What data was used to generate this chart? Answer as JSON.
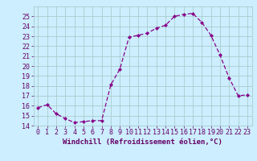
{
  "x": [
    0,
    1,
    2,
    3,
    4,
    5,
    6,
    7,
    8,
    9,
    10,
    11,
    12,
    13,
    14,
    15,
    16,
    17,
    18,
    19,
    20,
    21,
    22,
    23
  ],
  "y": [
    15.8,
    16.1,
    15.2,
    14.7,
    14.3,
    14.4,
    14.5,
    14.5,
    18.1,
    19.7,
    22.9,
    23.1,
    23.3,
    23.8,
    24.1,
    25.0,
    25.2,
    25.3,
    24.4,
    23.1,
    21.1,
    18.8,
    17.0,
    17.1
  ],
  "line_color": "#880088",
  "marker": "D",
  "marker_size": 2.2,
  "bg_color": "#cceeff",
  "grid_color": "#aacccc",
  "xlabel": "Windchill (Refroidissement éolien,°C)",
  "ylim": [
    14,
    26
  ],
  "xlim": [
    -0.5,
    23.5
  ],
  "yticks": [
    14,
    15,
    16,
    17,
    18,
    19,
    20,
    21,
    22,
    23,
    24,
    25
  ],
  "xticks": [
    0,
    1,
    2,
    3,
    4,
    5,
    6,
    7,
    8,
    9,
    10,
    11,
    12,
    13,
    14,
    15,
    16,
    17,
    18,
    19,
    20,
    21,
    22,
    23
  ],
  "font_color": "#660066",
  "label_fontsize": 6.5,
  "tick_fontsize": 6.0
}
